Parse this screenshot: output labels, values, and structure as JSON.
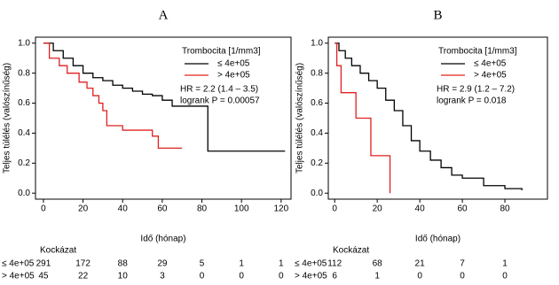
{
  "chart_data": [
    {
      "type": "step",
      "title": "A",
      "xlabel": "Idő (hónap)",
      "ylabel": "Teljes túlélés (valószínűség)",
      "legend_title": "Trombocita [1/mm3]",
      "annotations": [
        "HR = 2.2 (1.4 – 3.5)",
        "logrank P = 0.00057"
      ],
      "xlim": [
        -4,
        125
      ],
      "ylim": [
        -0.04,
        1.04
      ],
      "xticks": [
        0,
        20,
        40,
        60,
        80,
        100,
        120
      ],
      "yticks": [
        {
          "value": 0,
          "label": "0.0"
        },
        0.2,
        0.4,
        0.6,
        0.8,
        {
          "value": 1,
          "label": "1.0"
        }
      ],
      "series": [
        {
          "name": "≤ 4e+05",
          "color": "#000000",
          "x": [
            0,
            5,
            10,
            15,
            20,
            25,
            30,
            35,
            40,
            45,
            50,
            55,
            60,
            65,
            83,
            83,
            122
          ],
          "values": [
            1,
            0.95,
            0.9,
            0.85,
            0.8,
            0.77,
            0.75,
            0.72,
            0.7,
            0.68,
            0.66,
            0.65,
            0.62,
            0.58,
            0.58,
            0.28,
            0.28
          ]
        },
        {
          "name": "> 4e+05",
          "color": "#e02020",
          "x": [
            0,
            3,
            8,
            12,
            18,
            22,
            25,
            28,
            30,
            32,
            40,
            55,
            58,
            70
          ],
          "values": [
            1,
            0.9,
            0.85,
            0.8,
            0.74,
            0.7,
            0.65,
            0.6,
            0.55,
            0.45,
            0.42,
            0.38,
            0.3,
            0.3
          ]
        }
      ],
      "risk_table": {
        "title": "Kockázat",
        "rows": [
          {
            "name": "≤ 4e+05",
            "values": [
              291,
              172,
              88,
              29,
              5,
              1,
              1
            ]
          },
          {
            "name": "> 4e+05",
            "values": [
              45,
              22,
              10,
              3,
              0,
              0,
              0
            ]
          }
        ]
      }
    },
    {
      "type": "step",
      "title": "B",
      "xlabel": "Idő (hónap)",
      "ylabel": "Teljes túlélés (valószínűség)",
      "legend_title": "Trombocita [1/mm3]",
      "annotations": [
        "HR = 2.9 (1.2 – 7.2)",
        "logrank P = 0.018"
      ],
      "xlim": [
        -3,
        100
      ],
      "ylim": [
        -0.04,
        1.04
      ],
      "xticks": [
        0,
        20,
        40,
        60,
        80
      ],
      "yticks": [
        {
          "value": 0,
          "label": "0.0"
        },
        0.2,
        0.4,
        0.6,
        0.8,
        {
          "value": 1,
          "label": "1.0"
        }
      ],
      "series": [
        {
          "name": "≤ 4e+05",
          "color": "#000000",
          "x": [
            0,
            2,
            5,
            8,
            12,
            16,
            20,
            24,
            28,
            32,
            36,
            40,
            45,
            50,
            55,
            60,
            70,
            80,
            88
          ],
          "values": [
            1,
            0.95,
            0.9,
            0.85,
            0.8,
            0.75,
            0.7,
            0.62,
            0.55,
            0.45,
            0.35,
            0.28,
            0.22,
            0.17,
            0.12,
            0.1,
            0.05,
            0.03,
            0.02
          ]
        },
        {
          "name": "> 4e+05",
          "color": "#e02020",
          "x": [
            0,
            1,
            3,
            10,
            17,
            26
          ],
          "values": [
            1,
            0.85,
            0.67,
            0.5,
            0.25,
            0
          ]
        }
      ],
      "risk_table": {
        "title": "Kockázat",
        "rows": [
          {
            "name": "≤ 4e+05",
            "values": [
              112,
              68,
              21,
              7,
              1
            ]
          },
          {
            "name": "> 4e+05",
            "values": [
              6,
              1,
              0,
              0,
              0
            ]
          }
        ]
      }
    }
  ]
}
